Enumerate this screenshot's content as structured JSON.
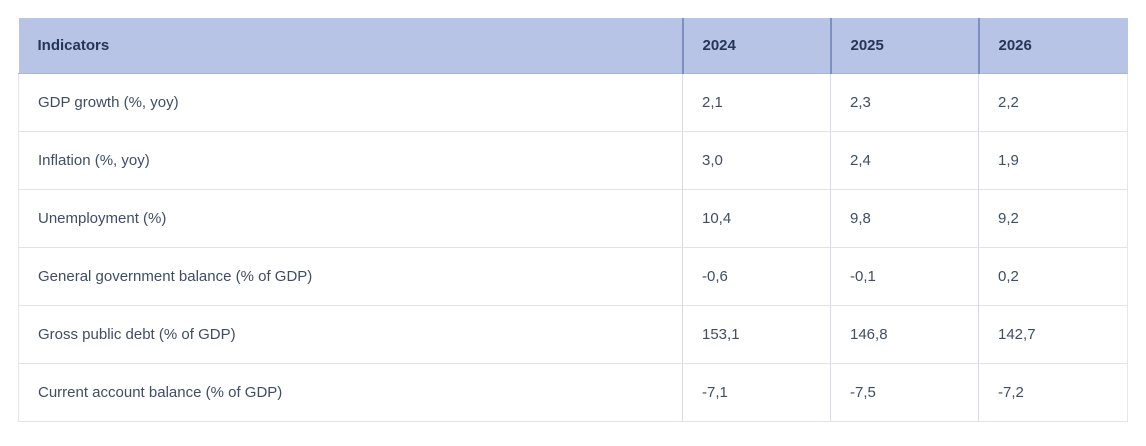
{
  "colors": {
    "page_bg": "#ffffff",
    "header_bg": "#b7c4e6",
    "header_text": "#26355a",
    "header_divider": "#7d90c3",
    "body_text": "#3f4d66",
    "row_border": "#e0e3ea",
    "column_border": "#d7dce8"
  },
  "table": {
    "columns": [
      "Indicators",
      "2024",
      "2025",
      "2026"
    ],
    "rows": [
      {
        "label": "GDP growth (%, yoy)",
        "values": [
          "2,1",
          "2,3",
          "2,2"
        ]
      },
      {
        "label": "Inflation (%, yoy)",
        "values": [
          "3,0",
          "2,4",
          "1,9"
        ]
      },
      {
        "label": "Unemployment (%)",
        "values": [
          "10,4",
          "9,8",
          "9,2"
        ]
      },
      {
        "label": "General government balance (% of GDP)",
        "values": [
          "-0,6",
          "-0,1",
          "0,2"
        ]
      },
      {
        "label": "Gross public debt (% of GDP)",
        "values": [
          "153,1",
          "146,8",
          "142,7"
        ]
      },
      {
        "label": "Current account balance (% of GDP)",
        "values": [
          "-7,1",
          "-7,5",
          "-7,2"
        ]
      }
    ]
  },
  "chart_data": {
    "type": "table",
    "title": "",
    "columns": [
      "Indicators",
      "2024",
      "2025",
      "2026"
    ],
    "categories": [
      "2024",
      "2025",
      "2026"
    ],
    "series": [
      {
        "name": "GDP growth (%, yoy)",
        "values": [
          2.1,
          2.3,
          2.2
        ]
      },
      {
        "name": "Inflation (%, yoy)",
        "values": [
          3.0,
          2.4,
          1.9
        ]
      },
      {
        "name": "Unemployment (%)",
        "values": [
          10.4,
          9.8,
          9.2
        ]
      },
      {
        "name": "General government balance (% of GDP)",
        "values": [
          -0.6,
          -0.1,
          0.2
        ]
      },
      {
        "name": "Gross public debt (% of GDP)",
        "values": [
          153.1,
          146.8,
          142.7
        ]
      },
      {
        "name": "Current account balance (% of GDP)",
        "values": [
          -7.1,
          -7.5,
          -7.2
        ]
      }
    ],
    "layout": {
      "grid": "on",
      "decimal_separator": ",",
      "header_fill": "#b7c4e6",
      "value_alignment": "left"
    }
  }
}
